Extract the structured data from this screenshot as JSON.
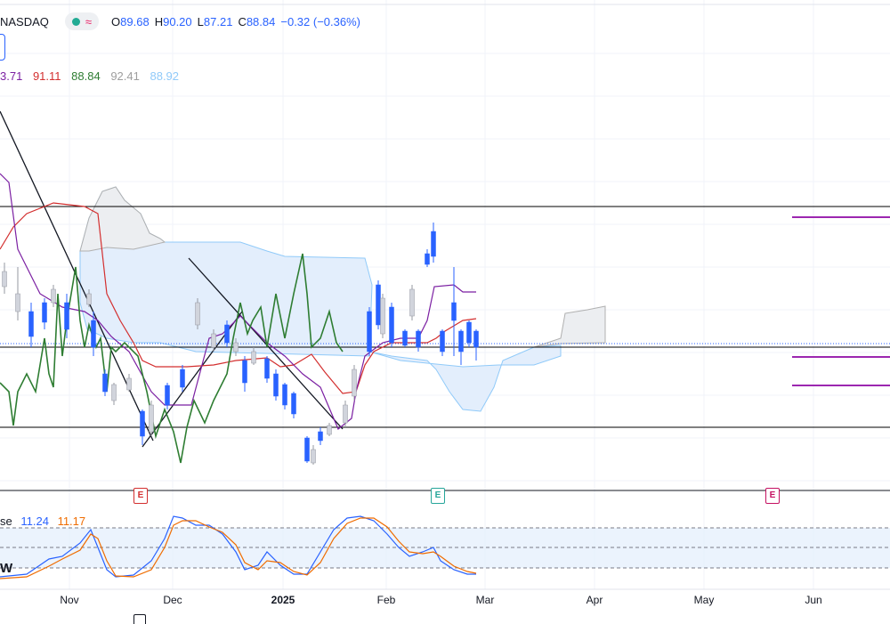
{
  "header": {
    "symbol": "NASDAQ",
    "open_label": "O",
    "open": "89.68",
    "high_label": "H",
    "high": "90.20",
    "low_label": "L",
    "low": "87.21",
    "close_label": "C",
    "close": "88.84",
    "change": "−0.32 (−0.36%)"
  },
  "ichimoku": {
    "values": [
      {
        "text": "3.71",
        "color": "#7b1fa2"
      },
      {
        "text": "91.11",
        "color": "#d32f2f"
      },
      {
        "text": "88.84",
        "color": "#2e7d32"
      },
      {
        "text": "92.41",
        "color": "#9e9e9e"
      },
      {
        "text": "88.92",
        "color": "#90caf9"
      }
    ]
  },
  "oscillator": {
    "label_fragment": "se",
    "k_value": "11.24",
    "k_color": "#2962ff",
    "d_value": "11.17",
    "d_color": "#ef6c00",
    "side_label": "W"
  },
  "x_axis": {
    "ticks": [
      {
        "label": "Nov",
        "bold": false
      },
      {
        "label": "Dec",
        "bold": false
      },
      {
        "label": "2025",
        "bold": true
      },
      {
        "label": "Feb",
        "bold": false
      },
      {
        "label": "Mar",
        "bold": false
      },
      {
        "label": "Apr",
        "bold": false
      },
      {
        "label": "May",
        "bold": false
      },
      {
        "label": "Jun",
        "bold": false
      }
    ]
  },
  "earnings_badges": [
    {
      "label": "E",
      "color": "#d32f2f"
    },
    {
      "label": "E",
      "color": "#26a69a"
    },
    {
      "label": "E",
      "color": "#c51162"
    }
  ],
  "colors": {
    "bull_candle": "#d1d4dc",
    "bear_candle": "#2962ff",
    "tenkan": "#d32f2f",
    "kijun": "#7b1fa2",
    "chikou": "#2e7d32",
    "cloud_blue": "#90caf9",
    "cloud_grey": "#b0b0b0",
    "horizontal_levels": "#000000",
    "purple_levels": "#9c27b0"
  }
}
